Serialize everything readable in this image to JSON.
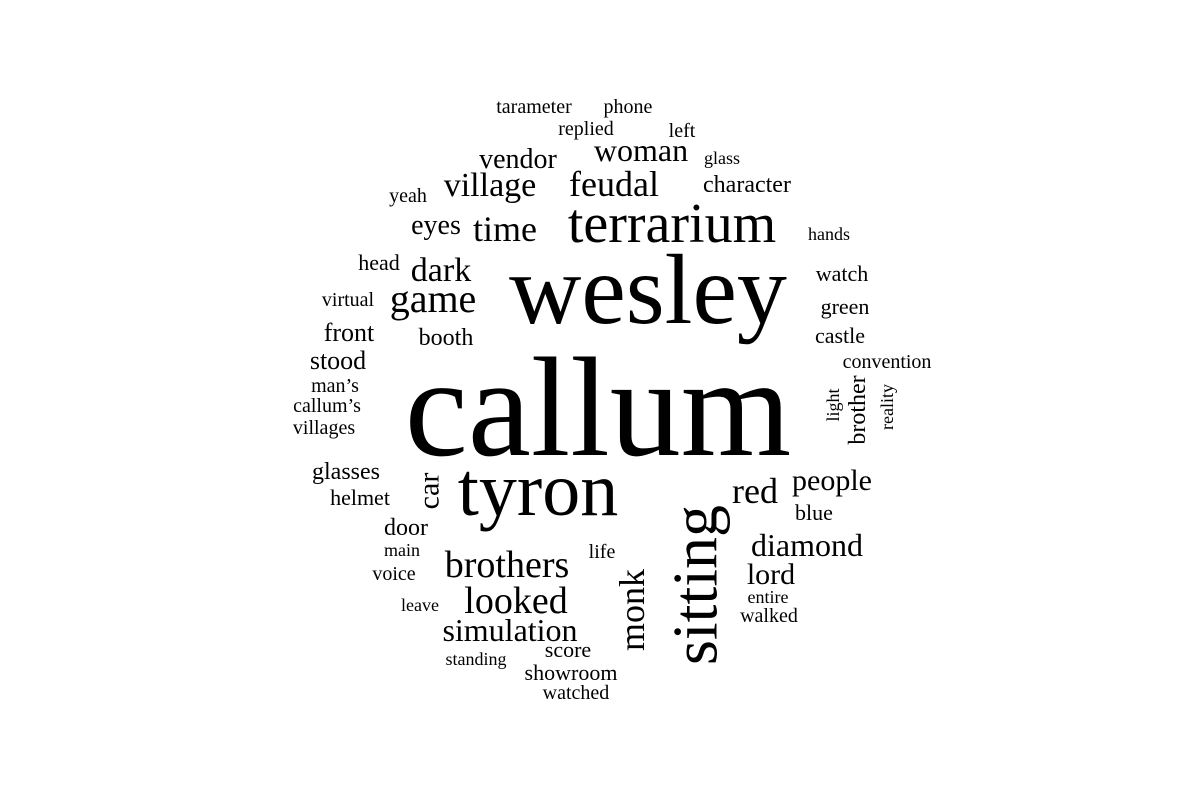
{
  "words": [
    {
      "text": "callum",
      "rotated": false
    },
    {
      "text": "wesley",
      "rotated": false
    },
    {
      "text": "tyron",
      "rotated": false
    },
    {
      "text": "sitting",
      "rotated": true
    },
    {
      "text": "terrarium",
      "rotated": false
    },
    {
      "text": "brothers",
      "rotated": false
    },
    {
      "text": "game",
      "rotated": false
    },
    {
      "text": "feudal",
      "rotated": false
    },
    {
      "text": "village",
      "rotated": false
    },
    {
      "text": "time",
      "rotated": false
    },
    {
      "text": "woman",
      "rotated": false
    },
    {
      "text": "looked",
      "rotated": false
    },
    {
      "text": "diamond",
      "rotated": false
    },
    {
      "text": "simulation",
      "rotated": false
    },
    {
      "text": "dark",
      "rotated": false
    },
    {
      "text": "monk",
      "rotated": true
    },
    {
      "text": "red",
      "rotated": false
    },
    {
      "text": "vendor",
      "rotated": false
    },
    {
      "text": "people",
      "rotated": false
    },
    {
      "text": "car",
      "rotated": true
    },
    {
      "text": "lord",
      "rotated": false
    },
    {
      "text": "eyes",
      "rotated": false
    },
    {
      "text": "character",
      "rotated": false
    },
    {
      "text": "front",
      "rotated": false
    },
    {
      "text": "stood",
      "rotated": false
    },
    {
      "text": "glasses",
      "rotated": false
    },
    {
      "text": "booth",
      "rotated": false
    },
    {
      "text": "door",
      "rotated": false
    },
    {
      "text": "helmet",
      "rotated": false
    },
    {
      "text": "brother",
      "rotated": true
    },
    {
      "text": "showroom",
      "rotated": false
    },
    {
      "text": "score",
      "rotated": false
    },
    {
      "text": "head",
      "rotated": false
    },
    {
      "text": "watch",
      "rotated": false
    },
    {
      "text": "green",
      "rotated": false
    },
    {
      "text": "castle",
      "rotated": false
    },
    {
      "text": "convention",
      "rotated": false
    },
    {
      "text": "blue",
      "rotated": false
    },
    {
      "text": "virtual",
      "rotated": false
    },
    {
      "text": "man’s",
      "rotated": false
    },
    {
      "text": "callum’s",
      "rotated": false
    },
    {
      "text": "villages",
      "rotated": false
    },
    {
      "text": "tarameter",
      "rotated": false
    },
    {
      "text": "phone",
      "rotated": false
    },
    {
      "text": "replied",
      "rotated": false
    },
    {
      "text": "left",
      "rotated": false
    },
    {
      "text": "glass",
      "rotated": false
    },
    {
      "text": "yeah",
      "rotated": false
    },
    {
      "text": "hands",
      "rotated": false
    },
    {
      "text": "light",
      "rotated": true
    },
    {
      "text": "reality",
      "rotated": true
    },
    {
      "text": "main",
      "rotated": false
    },
    {
      "text": "life",
      "rotated": false
    },
    {
      "text": "voice",
      "rotated": false
    },
    {
      "text": "leave",
      "rotated": false
    },
    {
      "text": "entire",
      "rotated": false
    },
    {
      "text": "walked",
      "rotated": false
    },
    {
      "text": "standing",
      "rotated": false
    },
    {
      "text": "watched",
      "rotated": false
    }
  ]
}
